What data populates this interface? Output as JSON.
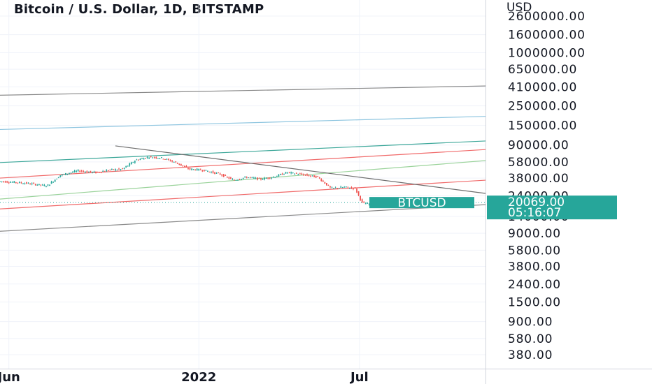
{
  "chart_data": {
    "type": "candlestick",
    "title": "Bitcoin / U.S. Dollar, 1D, BITSTAMP",
    "ylabel": "USD",
    "y_scale": "log",
    "y_ticks": [
      "2600000.00",
      "1600000.00",
      "1000000.00",
      "650000.00",
      "410000.00",
      "250000.00",
      "150000.00",
      "90000.00",
      "58000.00",
      "38000.00",
      "24000.00",
      "14000.00",
      "9000.00",
      "5800.00",
      "3800.00",
      "2400.00",
      "1500.00",
      "900.00",
      "580.00",
      "380.00"
    ],
    "x_ticks": [
      {
        "label": "Jun",
        "day": 0
      },
      {
        "label": "2022",
        "day": 214
      },
      {
        "label": "Jul",
        "day": 395
      }
    ],
    "x_day_range": [
      -10,
      537
    ],
    "y_value_range": [
      300,
      3200000
    ],
    "grid": true,
    "symbol_badge": "BTCUSD",
    "price_badge": "20069.00",
    "countdown_badge": "05:16:07",
    "last_price": 20069,
    "colors": {
      "up": "#26a69a",
      "down": "#ef5350",
      "badge": "#26a69a"
    },
    "candles_sampled": [
      {
        "day": -10,
        "price": 35000
      },
      {
        "day": 10,
        "price": 34000
      },
      {
        "day": 25,
        "price": 33000
      },
      {
        "day": 45,
        "price": 31000
      },
      {
        "day": 60,
        "price": 41000
      },
      {
        "day": 80,
        "price": 46000
      },
      {
        "day": 100,
        "price": 44000
      },
      {
        "day": 115,
        "price": 47000
      },
      {
        "day": 130,
        "price": 48000
      },
      {
        "day": 145,
        "price": 61000
      },
      {
        "day": 160,
        "price": 66000
      },
      {
        "day": 175,
        "price": 64000
      },
      {
        "day": 190,
        "price": 57000
      },
      {
        "day": 205,
        "price": 48000
      },
      {
        "day": 220,
        "price": 47000
      },
      {
        "day": 240,
        "price": 42000
      },
      {
        "day": 255,
        "price": 36000
      },
      {
        "day": 270,
        "price": 39000
      },
      {
        "day": 285,
        "price": 37000
      },
      {
        "day": 300,
        "price": 39000
      },
      {
        "day": 315,
        "price": 44000
      },
      {
        "day": 330,
        "price": 42000
      },
      {
        "day": 350,
        "price": 39000
      },
      {
        "day": 365,
        "price": 29000
      },
      {
        "day": 380,
        "price": 30000
      },
      {
        "day": 392,
        "price": 29000
      },
      {
        "day": 400,
        "price": 20000
      },
      {
        "day": 410,
        "price": 19000
      },
      {
        "day": 430,
        "price": 21000
      },
      {
        "day": 450,
        "price": 21500
      },
      {
        "day": 465,
        "price": 20069
      }
    ]
  },
  "lines": [
    {
      "color": "#8a8a8a",
      "p1": {
        "day": -10,
        "price": 330000
      },
      "p2": {
        "day": 537,
        "price": 420000
      }
    },
    {
      "color": "#8fc6e0",
      "p1": {
        "day": -10,
        "price": 135000
      },
      "p2": {
        "day": 537,
        "price": 190000
      }
    },
    {
      "color": "#3ea89a",
      "p1": {
        "day": -10,
        "price": 57000
      },
      "p2": {
        "day": 537,
        "price": 100000
      }
    },
    {
      "color": "#f06a6a",
      "p1": {
        "day": -10,
        "price": 38000
      },
      "p2": {
        "day": 537,
        "price": 80000
      }
    },
    {
      "color": "#9bd39b",
      "p1": {
        "day": -10,
        "price": 22000
      },
      "p2": {
        "day": 537,
        "price": 60000
      }
    },
    {
      "color": "#f06a6a",
      "p1": {
        "day": -10,
        "price": 17000
      },
      "p2": {
        "day": 537,
        "price": 36000
      }
    },
    {
      "color": "#8a8a8a",
      "p1": {
        "day": -10,
        "price": 9500
      },
      "p2": {
        "day": 537,
        "price": 19000
      }
    },
    {
      "color": "#6d6d6d",
      "p1": {
        "day": 120,
        "price": 88000
      },
      "p2": {
        "day": 537,
        "price": 25500
      }
    }
  ]
}
